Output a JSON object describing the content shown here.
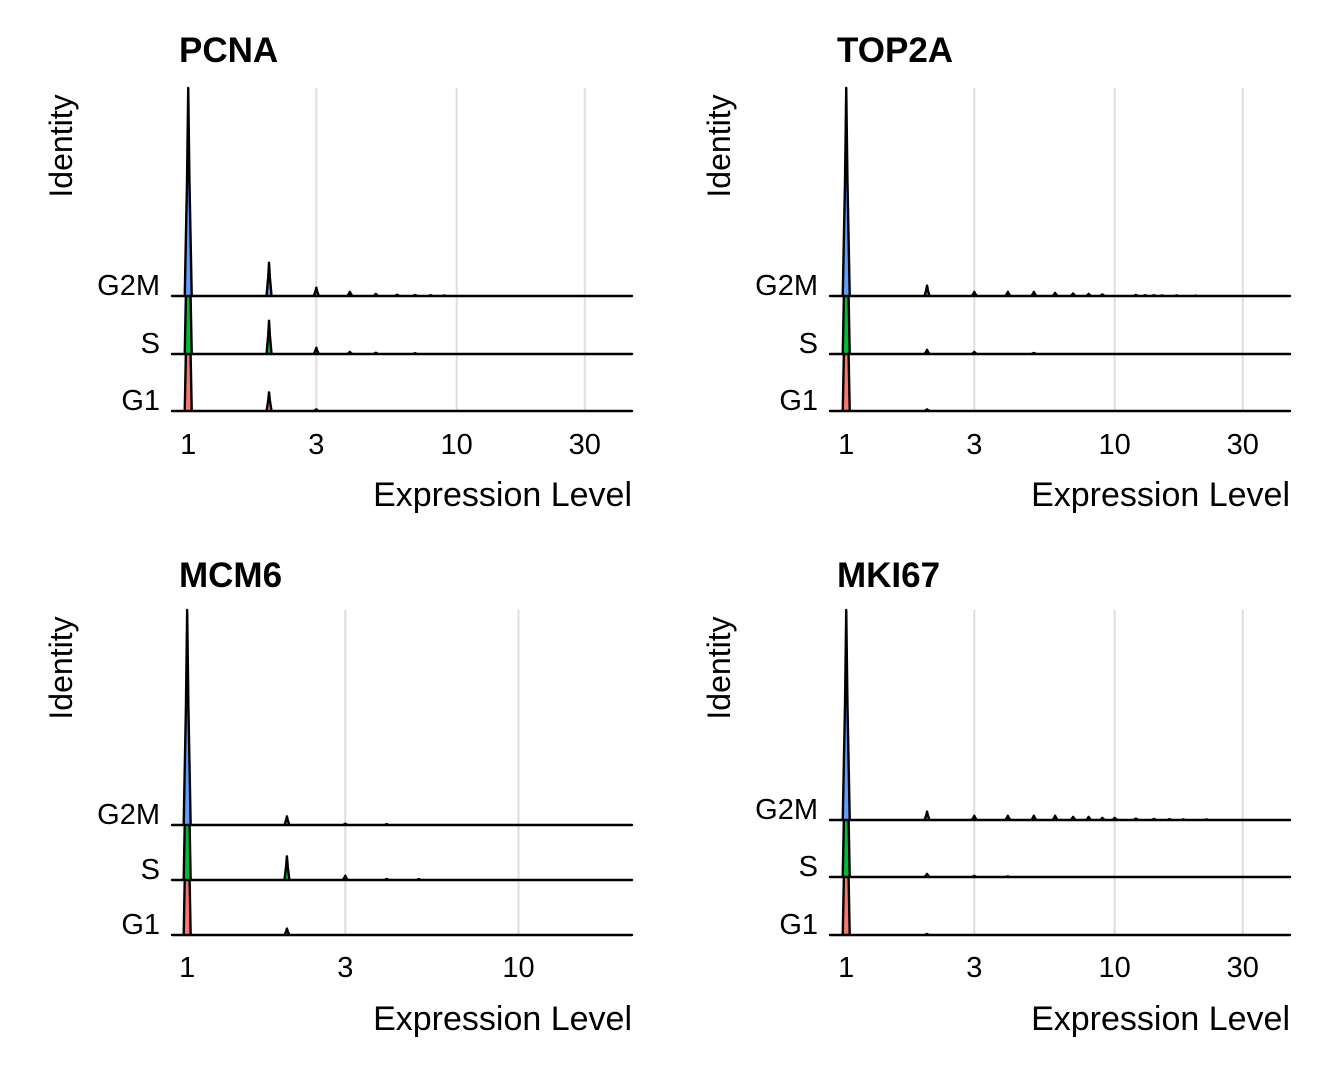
{
  "chart_data": [
    {
      "type": "ridgeline",
      "title": "PCNA",
      "xlabel": "Expression Level",
      "ylabel": "Identity",
      "x_scale": "log",
      "xlim": [
        0.87,
        45
      ],
      "xticks": [
        1,
        3,
        10,
        30
      ],
      "categories": [
        "G1",
        "S",
        "G2M"
      ],
      "colors": {
        "G1": "#F8766D",
        "S": "#00BA38",
        "G2M": "#619CFF"
      },
      "grid": true,
      "series": [
        {
          "name": "G1",
          "peaks": [
            [
              1,
              1.0
            ],
            [
              2,
              0.09
            ],
            [
              3,
              0.008
            ]
          ]
        },
        {
          "name": "S",
          "peaks": [
            [
              1,
              1.0
            ],
            [
              2,
              0.16
            ],
            [
              3,
              0.03
            ],
            [
              4,
              0.01
            ],
            [
              5,
              0.006
            ],
            [
              7,
              0.004
            ]
          ]
        },
        {
          "name": "G2M",
          "peaks": [
            [
              1,
              1.0
            ],
            [
              2,
              0.16
            ],
            [
              3,
              0.04
            ],
            [
              4,
              0.02
            ],
            [
              5,
              0.01
            ],
            [
              6,
              0.006
            ],
            [
              7,
              0.005
            ],
            [
              8,
              0.004
            ],
            [
              9,
              0.003
            ]
          ]
        }
      ]
    },
    {
      "type": "ridgeline",
      "title": "TOP2A",
      "xlabel": "Expression Level",
      "ylabel": "Identity",
      "x_scale": "log",
      "xlim": [
        0.87,
        45
      ],
      "xticks": [
        1,
        3,
        10,
        30
      ],
      "categories": [
        "G1",
        "S",
        "G2M"
      ],
      "colors": {
        "G1": "#F8766D",
        "S": "#00BA38",
        "G2M": "#619CFF"
      },
      "grid": true,
      "series": [
        {
          "name": "G1",
          "peaks": [
            [
              1,
              1.0
            ],
            [
              2,
              0.008
            ]
          ]
        },
        {
          "name": "S",
          "peaks": [
            [
              1,
              1.0
            ],
            [
              2,
              0.02
            ],
            [
              3,
              0.01
            ],
            [
              5,
              0.005
            ]
          ]
        },
        {
          "name": "G2M",
          "peaks": [
            [
              1,
              1.0
            ],
            [
              2,
              0.05
            ],
            [
              3,
              0.02
            ],
            [
              4,
              0.02
            ],
            [
              5,
              0.02
            ],
            [
              6,
              0.015
            ],
            [
              7,
              0.012
            ],
            [
              8,
              0.01
            ],
            [
              9,
              0.008
            ],
            [
              12,
              0.005
            ],
            [
              13,
              0.004
            ],
            [
              14,
              0.004
            ],
            [
              15,
              0.003
            ],
            [
              17,
              0.003
            ],
            [
              20,
              0.002
            ]
          ]
        }
      ]
    },
    {
      "type": "ridgeline",
      "title": "MCM6",
      "xlabel": "Expression Level",
      "ylabel": "Identity",
      "x_scale": "log",
      "xlim": [
        0.9,
        22
      ],
      "xticks": [
        1,
        3,
        10
      ],
      "categories": [
        "G1",
        "S",
        "G2M"
      ],
      "colors": {
        "G1": "#F8766D",
        "S": "#00BA38",
        "G2M": "#619CFF"
      },
      "grid": true,
      "series": [
        {
          "name": "G1",
          "peaks": [
            [
              1,
              1.0
            ],
            [
              2,
              0.03
            ]
          ]
        },
        {
          "name": "S",
          "peaks": [
            [
              1,
              1.0
            ],
            [
              2,
              0.11
            ],
            [
              3,
              0.02
            ],
            [
              4,
              0.005
            ],
            [
              5,
              0.004
            ]
          ]
        },
        {
          "name": "G2M",
          "peaks": [
            [
              1,
              1.0
            ],
            [
              2,
              0.04
            ],
            [
              3,
              0.006
            ],
            [
              4,
              0.004
            ]
          ]
        }
      ]
    },
    {
      "type": "ridgeline",
      "title": "MKI67",
      "xlabel": "Expression Level",
      "ylabel": "Identity",
      "x_scale": "log",
      "xlim": [
        0.87,
        45
      ],
      "xticks": [
        1,
        3,
        10,
        30
      ],
      "categories": [
        "G1",
        "S",
        "G2M"
      ],
      "colors": {
        "G1": "#F8766D",
        "S": "#00BA38",
        "G2M": "#619CFF"
      },
      "grid": true,
      "series": [
        {
          "name": "G1",
          "peaks": [
            [
              1,
              1.0
            ],
            [
              2,
              0.005
            ]
          ]
        },
        {
          "name": "S",
          "peaks": [
            [
              1,
              1.0
            ],
            [
              2,
              0.015
            ],
            [
              3,
              0.005
            ],
            [
              4,
              0.003
            ]
          ]
        },
        {
          "name": "G2M",
          "peaks": [
            [
              1,
              1.0
            ],
            [
              2,
              0.04
            ],
            [
              3,
              0.02
            ],
            [
              4,
              0.02
            ],
            [
              5,
              0.02
            ],
            [
              6,
              0.02
            ],
            [
              7,
              0.015
            ],
            [
              8,
              0.015
            ],
            [
              9,
              0.01
            ],
            [
              10,
              0.01
            ],
            [
              12,
              0.007
            ],
            [
              14,
              0.005
            ],
            [
              16,
              0.004
            ],
            [
              18,
              0.003
            ],
            [
              22,
              0.003
            ]
          ]
        }
      ]
    }
  ]
}
